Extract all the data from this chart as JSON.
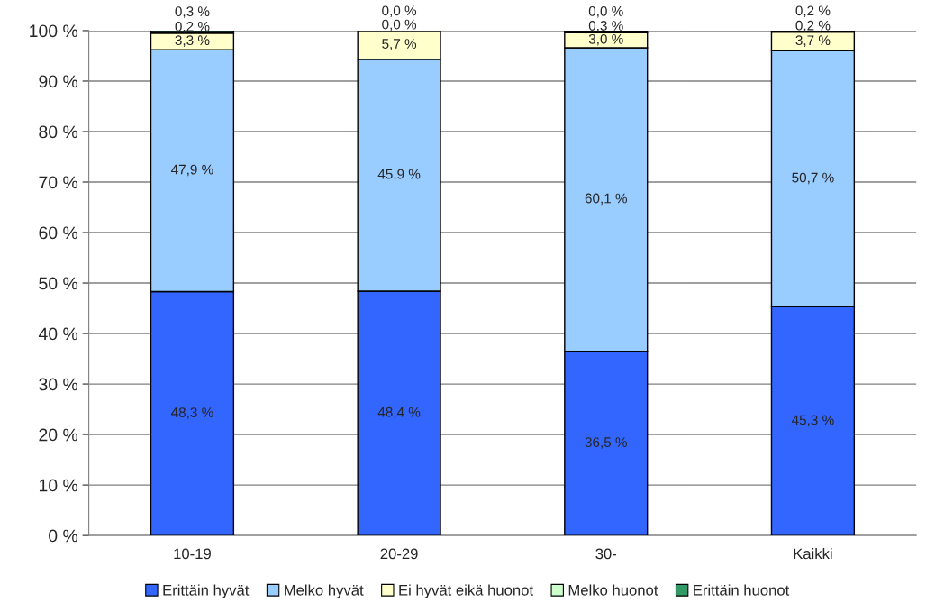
{
  "chart_data": {
    "type": "bar",
    "stacked": true,
    "categories": [
      "10-19",
      "20-29",
      "30-",
      "Kaikki"
    ],
    "series": [
      {
        "name": "Erittäin hyvät",
        "color": "#3366ff",
        "values": [
          48.3,
          48.4,
          36.5,
          45.3
        ],
        "value_labels": [
          "48,3 %",
          "48,4 %",
          "36,5 %",
          "45,3 %"
        ]
      },
      {
        "name": "Melko hyvät",
        "color": "#99ccff",
        "values": [
          47.9,
          45.9,
          60.1,
          50.7
        ],
        "value_labels": [
          "47,9 %",
          "45,9 %",
          "60,1 %",
          "50,7 %"
        ]
      },
      {
        "name": "Ei hyvät eikä huonot",
        "color": "#ffffcc",
        "values": [
          3.3,
          5.7,
          3.0,
          3.7
        ],
        "value_labels": [
          "3,3 %",
          "5,7 %",
          "3,0 %",
          "3,7 %"
        ]
      },
      {
        "name": "Melko huonot",
        "color": "#ccffcc",
        "values": [
          0.2,
          0.0,
          0.3,
          0.2
        ],
        "value_labels": [
          "0,2 %",
          "0,0 %",
          "0,3 %",
          "0,2 %"
        ]
      },
      {
        "name": "Erittäin huonot",
        "color": "#339966",
        "values": [
          0.3,
          0.0,
          0.0,
          0.2
        ],
        "value_labels": [
          "0,3 %",
          "0,0 %",
          "0,0 %",
          "0,2 %"
        ]
      }
    ],
    "ylim": [
      0,
      100
    ],
    "yticks": [
      {
        "value": 0,
        "label": "0 %"
      },
      {
        "value": 10,
        "label": "10 %"
      },
      {
        "value": 20,
        "label": "20 %"
      },
      {
        "value": 30,
        "label": "30 %"
      },
      {
        "value": 40,
        "label": "40 %"
      },
      {
        "value": 50,
        "label": "50 %"
      },
      {
        "value": 60,
        "label": "60 %"
      },
      {
        "value": 70,
        "label": "70 %"
      },
      {
        "value": 80,
        "label": "80 %"
      },
      {
        "value": 90,
        "label": "90 %"
      },
      {
        "value": 100,
        "label": "100 %"
      }
    ],
    "grid": "y",
    "legend": "bottom"
  }
}
